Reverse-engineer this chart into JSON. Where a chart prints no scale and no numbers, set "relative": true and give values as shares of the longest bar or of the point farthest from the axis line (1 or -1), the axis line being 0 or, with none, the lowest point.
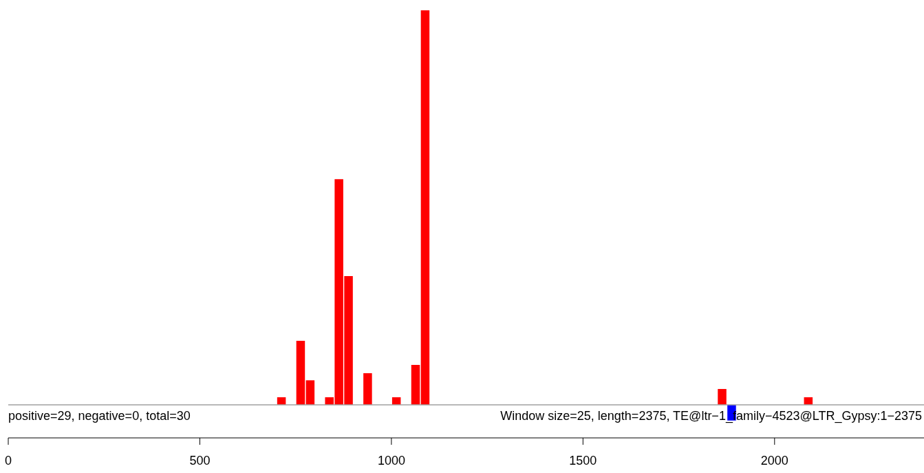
{
  "chart_data": {
    "type": "bar",
    "relative": true,
    "series": [
      {
        "color": "#ff0000",
        "x": [
          712.5,
          762.5,
          787.5,
          837.5,
          862.5,
          887.5,
          937.5,
          1012.5,
          1062.5,
          1087.5,
          1862.5,
          2087.5
        ],
        "values": [
          0.019,
          0.162,
          0.062,
          0.019,
          0.572,
          0.326,
          0.08,
          0.019,
          0.101,
          1,
          0.04,
          0.019
        ]
      },
      {
        "color": "#0000ff",
        "x": [
          1887.5
        ],
        "values": [
          -0.04
        ]
      }
    ],
    "xlim": [
      0,
      2390
    ],
    "xticks": [
      0,
      500,
      1000,
      1500,
      2000
    ],
    "annotations": [
      "positive=29, negative=0, total=30",
      "Window size=25, length=2375, TE@ltr−1_family−4523@LTR_Gypsy:1−2375"
    ]
  }
}
